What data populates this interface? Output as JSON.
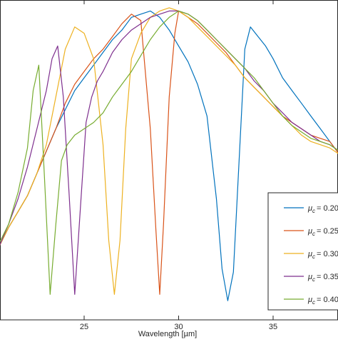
{
  "chart_data": {
    "type": "line",
    "title": "",
    "xlabel": "Wavelength [µm]",
    "ylabel": "",
    "xlim": [
      20.0,
      38.5
    ],
    "ylim": [
      0.0,
      1.0
    ],
    "x_ticks": [
      25,
      30,
      35
    ],
    "grid": false,
    "legend_placement": "bottom-right",
    "legend_symbol": "μ",
    "legend_subscript": "c",
    "series": [
      {
        "name": "= 0.20",
        "color": "#0072BD",
        "x": [
          20.0,
          20.5,
          21.0,
          21.5,
          22.0,
          22.5,
          23.0,
          23.5,
          24.0,
          24.5,
          25.0,
          25.5,
          26.0,
          26.5,
          27.0,
          27.5,
          28.0,
          28.5,
          29.0,
          29.5,
          30.0,
          30.5,
          31.0,
          31.5,
          32.0,
          32.3,
          32.6,
          32.9,
          33.2,
          33.5,
          33.8,
          34.2,
          34.6,
          35.0,
          35.5,
          36.0,
          36.5,
          37.0,
          37.5,
          38.0,
          38.5
        ],
        "y": [
          0.2,
          0.23,
          0.29,
          0.34,
          0.39,
          0.46,
          0.53,
          0.6,
          0.66,
          0.72,
          0.76,
          0.8,
          0.84,
          0.88,
          0.91,
          0.95,
          0.96,
          0.97,
          0.95,
          0.91,
          0.86,
          0.81,
          0.74,
          0.64,
          0.38,
          0.16,
          0.06,
          0.15,
          0.5,
          0.85,
          0.92,
          0.89,
          0.86,
          0.82,
          0.76,
          0.72,
          0.68,
          0.64,
          0.6,
          0.56,
          0.52
        ]
      },
      {
        "name": "= 0.25",
        "color": "#D95319",
        "x": [
          20.0,
          20.5,
          21.0,
          21.5,
          22.0,
          22.5,
          23.0,
          23.5,
          24.0,
          24.5,
          25.0,
          25.5,
          26.0,
          26.5,
          27.0,
          27.5,
          28.0,
          28.5,
          28.8,
          29.0,
          29.2,
          29.5,
          29.8,
          30.0,
          30.5,
          31.0,
          31.5,
          32.0,
          32.5,
          33.0,
          33.5,
          34.0,
          34.5,
          35.0,
          35.5,
          36.0,
          36.5,
          37.0,
          37.5,
          38.0,
          38.5
        ],
        "y": [
          0.2,
          0.23,
          0.29,
          0.34,
          0.39,
          0.46,
          0.53,
          0.6,
          0.68,
          0.74,
          0.78,
          0.82,
          0.85,
          0.89,
          0.93,
          0.96,
          0.94,
          0.6,
          0.28,
          0.08,
          0.3,
          0.7,
          0.9,
          0.97,
          0.95,
          0.93,
          0.9,
          0.87,
          0.84,
          0.8,
          0.76,
          0.73,
          0.7,
          0.67,
          0.64,
          0.62,
          0.6,
          0.58,
          0.57,
          0.56,
          0.52
        ]
      },
      {
        "name": "= 0.30",
        "color": "#EDB120",
        "x": [
          20.0,
          20.5,
          21.0,
          21.5,
          22.0,
          22.5,
          23.0,
          23.5,
          24.0,
          24.5,
          25.0,
          25.5,
          26.0,
          26.3,
          26.6,
          26.9,
          27.2,
          27.5,
          28.0,
          28.5,
          29.0,
          29.5,
          30.0,
          30.5,
          31.0,
          31.5,
          32.0,
          32.5,
          33.0,
          33.5,
          34.0,
          34.5,
          35.0,
          35.5,
          36.0,
          36.5,
          37.0,
          37.5,
          38.0,
          38.5
        ],
        "y": [
          0.2,
          0.23,
          0.29,
          0.34,
          0.39,
          0.46,
          0.55,
          0.7,
          0.85,
          0.92,
          0.9,
          0.82,
          0.55,
          0.25,
          0.08,
          0.25,
          0.6,
          0.82,
          0.9,
          0.95,
          0.97,
          0.98,
          0.97,
          0.95,
          0.92,
          0.89,
          0.86,
          0.83,
          0.8,
          0.76,
          0.73,
          0.7,
          0.67,
          0.64,
          0.61,
          0.58,
          0.56,
          0.55,
          0.54,
          0.52
        ]
      },
      {
        "name": "= 0.35",
        "color": "#7E2F8E",
        "x": [
          20.0,
          20.5,
          21.0,
          21.5,
          22.0,
          22.5,
          23.0,
          23.3,
          23.6,
          23.9,
          24.2,
          24.5,
          24.8,
          25.1,
          25.4,
          25.7,
          26.0,
          26.5,
          27.0,
          27.5,
          28.0,
          28.5,
          29.0,
          29.5,
          30.0,
          30.5,
          31.0,
          31.5,
          32.0,
          32.5,
          33.0,
          33.5,
          34.0,
          34.5,
          35.0,
          35.5,
          36.0,
          36.5,
          37.0,
          37.5,
          38.0,
          38.5
        ],
        "y": [
          0.2,
          0.23,
          0.3,
          0.38,
          0.48,
          0.6,
          0.72,
          0.82,
          0.86,
          0.7,
          0.4,
          0.08,
          0.35,
          0.62,
          0.7,
          0.75,
          0.78,
          0.84,
          0.88,
          0.91,
          0.93,
          0.95,
          0.96,
          0.97,
          0.97,
          0.96,
          0.94,
          0.91,
          0.88,
          0.85,
          0.82,
          0.79,
          0.75,
          0.72,
          0.68,
          0.65,
          0.62,
          0.6,
          0.58,
          0.56,
          0.55,
          0.53
        ]
      },
      {
        "name": "= 0.40",
        "color": "#77AC30",
        "x": [
          20.0,
          20.5,
          21.0,
          21.5,
          22.0,
          22.3,
          22.6,
          22.9,
          23.2,
          23.5,
          23.8,
          24.1,
          24.5,
          25.0,
          25.5,
          26.0,
          26.5,
          27.0,
          27.5,
          28.0,
          28.5,
          29.0,
          29.5,
          30.0,
          30.5,
          31.0,
          31.5,
          32.0,
          32.5,
          33.0,
          33.5,
          34.0,
          34.5,
          35.0,
          35.5,
          36.0,
          36.5,
          37.0,
          37.5,
          38.0,
          38.5
        ],
        "y": [
          0.2,
          0.24,
          0.3,
          0.4,
          0.54,
          0.72,
          0.8,
          0.45,
          0.08,
          0.3,
          0.5,
          0.55,
          0.58,
          0.6,
          0.62,
          0.65,
          0.7,
          0.74,
          0.78,
          0.83,
          0.88,
          0.92,
          0.95,
          0.97,
          0.96,
          0.94,
          0.91,
          0.88,
          0.85,
          0.82,
          0.79,
          0.76,
          0.72,
          0.68,
          0.64,
          0.61,
          0.59,
          0.57,
          0.56,
          0.55,
          0.53
        ]
      }
    ]
  }
}
